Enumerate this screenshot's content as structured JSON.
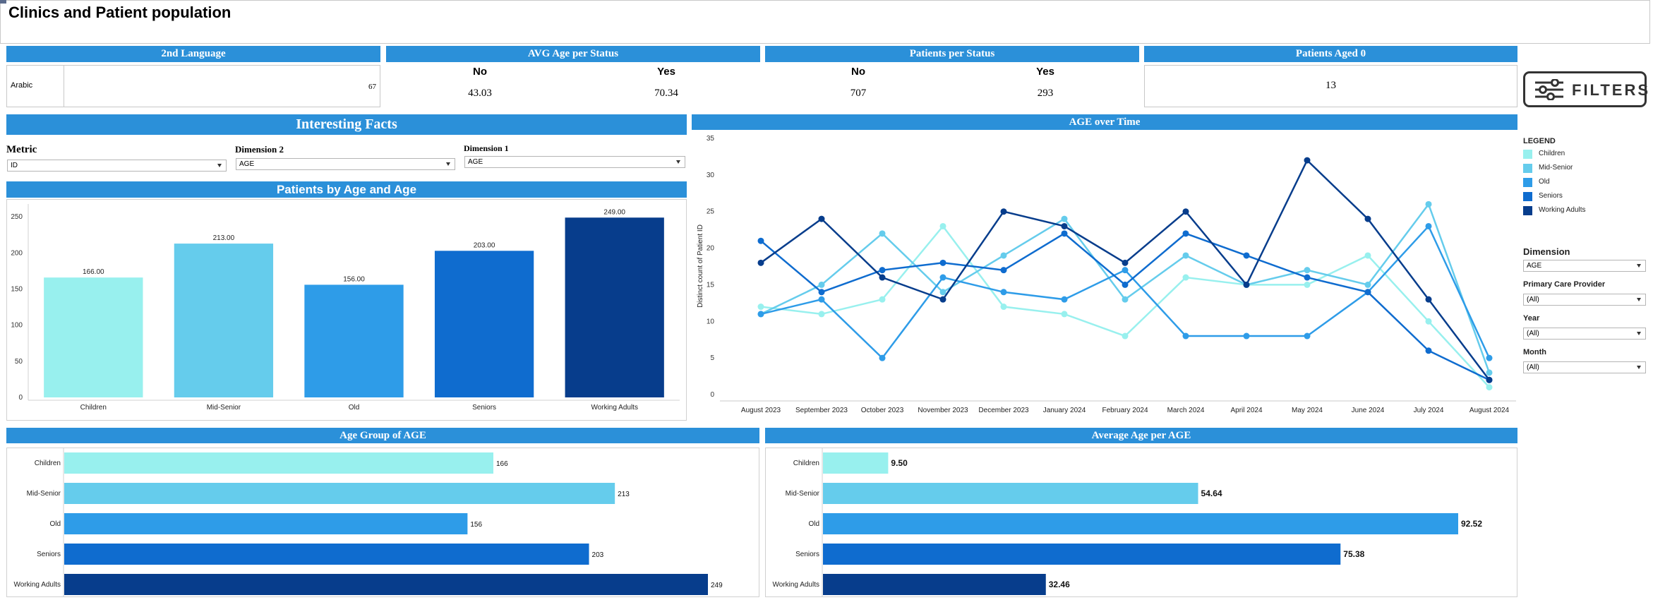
{
  "page": {
    "title": "Clinics and Patient population"
  },
  "kpis": {
    "second_language": {
      "header": "2nd Language",
      "label": "Arabic",
      "value": "67"
    },
    "avg_age_status": {
      "header": "AVG Age per Status",
      "no_label": "No",
      "yes_label": "Yes",
      "no_value": "43.03",
      "yes_value": "70.34"
    },
    "patients_status": {
      "header": "Patients per Status",
      "no_label": "No",
      "yes_label": "Yes",
      "no_value": "707",
      "yes_value": "293"
    },
    "aged_zero": {
      "header": "Patients Aged 0",
      "value": "13"
    }
  },
  "facts": {
    "header": "Interesting Facts",
    "metric_label": "Metric",
    "metric_value": "ID",
    "dim2_label": "Dimension 2",
    "dim2_value": "AGE",
    "dim1_label": "Dimension 1",
    "dim1_value": "AGE"
  },
  "colors": {
    "children": "#98f0ee",
    "mid_senior": "#65ccec",
    "old": "#2e9ce8",
    "seniors": "#0f6ccf",
    "working_adults": "#073d8c",
    "header": "#2b90d9"
  },
  "chart_data": [
    {
      "id": "bar_chart",
      "type": "bar",
      "title": "Patients by Age and Age",
      "categories": [
        "Children",
        "Mid-Senior",
        "Old",
        "Seniors",
        "Working Adults"
      ],
      "values": [
        166,
        213,
        156,
        203,
        249
      ],
      "labels": [
        "166.00",
        "213.00",
        "156.00",
        "203.00",
        "249.00"
      ],
      "ylim": [
        0,
        260
      ],
      "yticks": [
        0,
        50,
        100,
        150,
        200,
        250
      ],
      "xlabel": "",
      "ylabel": ""
    },
    {
      "id": "line_chart",
      "type": "line",
      "title": "AGE over Time",
      "ylabel": "Distinct count of Patient ID",
      "x": [
        "August 2023",
        "September 2023",
        "October 2023",
        "November 2023",
        "December 2023",
        "January 2024",
        "February 2024",
        "March 2024",
        "April 2024",
        "May 2024",
        "June 2024",
        "July 2024",
        "August 2024"
      ],
      "ylim": [
        0,
        35
      ],
      "yticks": [
        0,
        5,
        10,
        15,
        20,
        25,
        30,
        35
      ],
      "series": [
        {
          "name": "Children",
          "values": [
            12,
            11,
            13,
            23,
            12,
            11,
            8,
            16,
            15,
            15,
            19,
            10,
            1
          ]
        },
        {
          "name": "Mid-Senior",
          "values": [
            11,
            15,
            22,
            14,
            19,
            24,
            13,
            19,
            15,
            17,
            15,
            26,
            3
          ]
        },
        {
          "name": "Old",
          "values": [
            11,
            13,
            5,
            16,
            14,
            13,
            17,
            8,
            8,
            8,
            14,
            23,
            5
          ]
        },
        {
          "name": "Seniors",
          "values": [
            21,
            14,
            17,
            18,
            17,
            22,
            15,
            22,
            19,
            16,
            14,
            6,
            2
          ]
        },
        {
          "name": "Working Adults",
          "values": [
            18,
            24,
            16,
            13,
            25,
            23,
            18,
            25,
            15,
            32,
            24,
            13,
            2
          ]
        }
      ]
    },
    {
      "id": "hbar_count",
      "type": "bar",
      "orientation": "horizontal",
      "title": "Age Group of AGE",
      "categories": [
        "Children",
        "Mid-Senior",
        "Old",
        "Seniors",
        "Working Adults"
      ],
      "values": [
        166,
        213,
        156,
        203,
        249
      ],
      "labels": [
        "166",
        "213",
        "156",
        "203",
        "249"
      ],
      "xlim": [
        0,
        249
      ]
    },
    {
      "id": "hbar_avg",
      "type": "bar",
      "orientation": "horizontal",
      "title": "Average Age per AGE",
      "categories": [
        "Children",
        "Mid-Senior",
        "Old",
        "Seniors",
        "Working Adults"
      ],
      "values": [
        9.5,
        54.64,
        92.52,
        75.38,
        32.46
      ],
      "labels": [
        "9.50",
        "54.64",
        "92.52",
        "75.38",
        "32.46"
      ],
      "xlim": [
        0,
        92.52
      ]
    }
  ],
  "sidebar": {
    "filters_label": "FILTERS",
    "legend_title": "LEGEND",
    "legend": [
      "Children",
      "Mid-Senior",
      "Old",
      "Seniors",
      "Working Adults"
    ],
    "dimension_label": "Dimension",
    "dimension_value": "AGE",
    "provider_label": "Primary Care Provider",
    "provider_value": "(All)",
    "year_label": "Year",
    "year_value": "(All)",
    "month_label": "Month",
    "month_value": "(All)"
  }
}
